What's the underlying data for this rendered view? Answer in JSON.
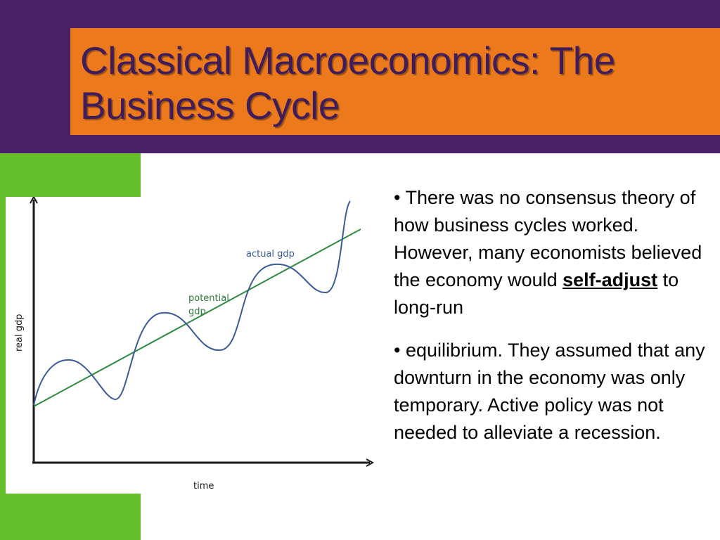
{
  "slide": {
    "title_line1": "Classical Macroeconomics: The",
    "title_line2": "Business Cycle",
    "colors": {
      "band": "#4a2068",
      "title_box": "#ec7a1c",
      "title_text": "#3f1c5c",
      "side_bar": "#66c02b"
    }
  },
  "bullets": [
    {
      "pre": "• There was no consensus theory of how business cycles worked. However, many economists believed the economy would ",
      "emph": "self-adjust",
      "post": " to long-run"
    },
    {
      "pre": "• equilibrium. They assumed that any downturn in the economy was only temporary. Active policy was not needed to alleviate a recession.",
      "emph": "",
      "post": ""
    }
  ],
  "diagram": {
    "y_axis_label": "real gdp",
    "x_axis_label": "time",
    "actual_label": "actual gdp",
    "potential_label_line1": "potential",
    "potential_label_line2": "gdp",
    "actual_color": "#3a5a9a",
    "potential_color": "#2d8a3e"
  }
}
